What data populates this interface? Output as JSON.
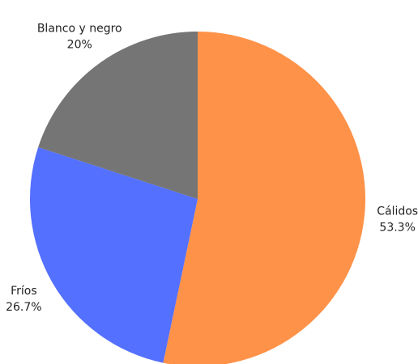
{
  "chart_data": {
    "type": "pie",
    "categories": [
      "Cálidos",
      "Fríos",
      "Blanco y negro"
    ],
    "values": [
      53.3,
      26.7,
      20
    ],
    "value_labels": [
      "53.3%",
      "26.7%",
      "20%"
    ],
    "colors": [
      "#ff9249",
      "#5470ff",
      "#757575"
    ]
  }
}
